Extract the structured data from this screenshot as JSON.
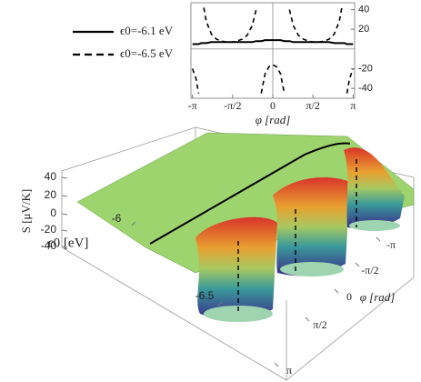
{
  "chart_data": [
    {
      "type": "line",
      "x_label": "φ [rad]",
      "x": [
        -3.14,
        -3.0,
        -2.9,
        -2.8,
        -2.7,
        -2.6,
        -2.4,
        -2.2,
        -2.0,
        -1.8,
        -1.6,
        -1.4,
        -1.2,
        -1.0,
        -0.8,
        -0.65,
        -0.55,
        -0.45,
        -0.3,
        -0.15,
        0,
        0.15,
        0.3,
        0.45,
        0.55,
        0.65,
        0.8,
        1.0,
        1.2,
        1.4,
        1.6,
        1.8,
        2.0,
        2.2,
        2.4,
        2.6,
        2.7,
        2.8,
        2.9,
        3.0,
        3.14
      ],
      "xlim": [
        -3.2,
        3.2
      ],
      "xticks": [
        {
          "value": -3.1416,
          "label": "-π"
        },
        {
          "value": -1.5708,
          "label": "-π/2"
        },
        {
          "value": 0,
          "label": "0"
        },
        {
          "value": 1.5708,
          "label": "π/2"
        },
        {
          "value": 3.1416,
          "label": "π"
        }
      ],
      "ylim": [
        -50,
        47
      ],
      "yticks": [
        -40,
        -20,
        20,
        40
      ],
      "series": [
        {
          "name": "ϵ0=-6.1 eV",
          "color": "#000000",
          "dash": false,
          "values": [
            5,
            5,
            5,
            6,
            6,
            6,
            7,
            7,
            7,
            7,
            7,
            7,
            7,
            7,
            7,
            8,
            8,
            8,
            9,
            9,
            9,
            9,
            9,
            8,
            8,
            8,
            7,
            7,
            7,
            7,
            7,
            7,
            7,
            7,
            6,
            6,
            6,
            6,
            5,
            5,
            5
          ]
        },
        {
          "name": "ϵ0=-6.5 eV",
          "color": "#000000",
          "dash": true,
          "values": [
            -20,
            -30,
            -45,
            null,
            42,
            28,
            15,
            10,
            8,
            7,
            7,
            8,
            10,
            14,
            24,
            40,
            null,
            -45,
            -25,
            -18,
            -16,
            -18,
            -25,
            -45,
            null,
            40,
            24,
            14,
            10,
            8,
            7,
            7,
            8,
            10,
            15,
            28,
            42,
            null,
            -45,
            -30,
            -20
          ]
        }
      ]
    },
    {
      "type": "surface3d",
      "z_label": "S [μV/K]",
      "zticks": [
        40,
        20,
        0,
        -20,
        -40
      ],
      "x_label": "ϵ0 [eV]",
      "xticks": [
        -6.0,
        -6.5
      ],
      "y_label": "φ [rad]",
      "yticks": [
        {
          "value": -3.1416,
          "label": "-π"
        },
        {
          "value": -1.5708,
          "label": "-π/2"
        },
        {
          "value": 0,
          "label": "0"
        },
        {
          "value": 1.5708,
          "label": "π/2"
        },
        {
          "value": 3.1416,
          "label": "π"
        }
      ]
    }
  ]
}
